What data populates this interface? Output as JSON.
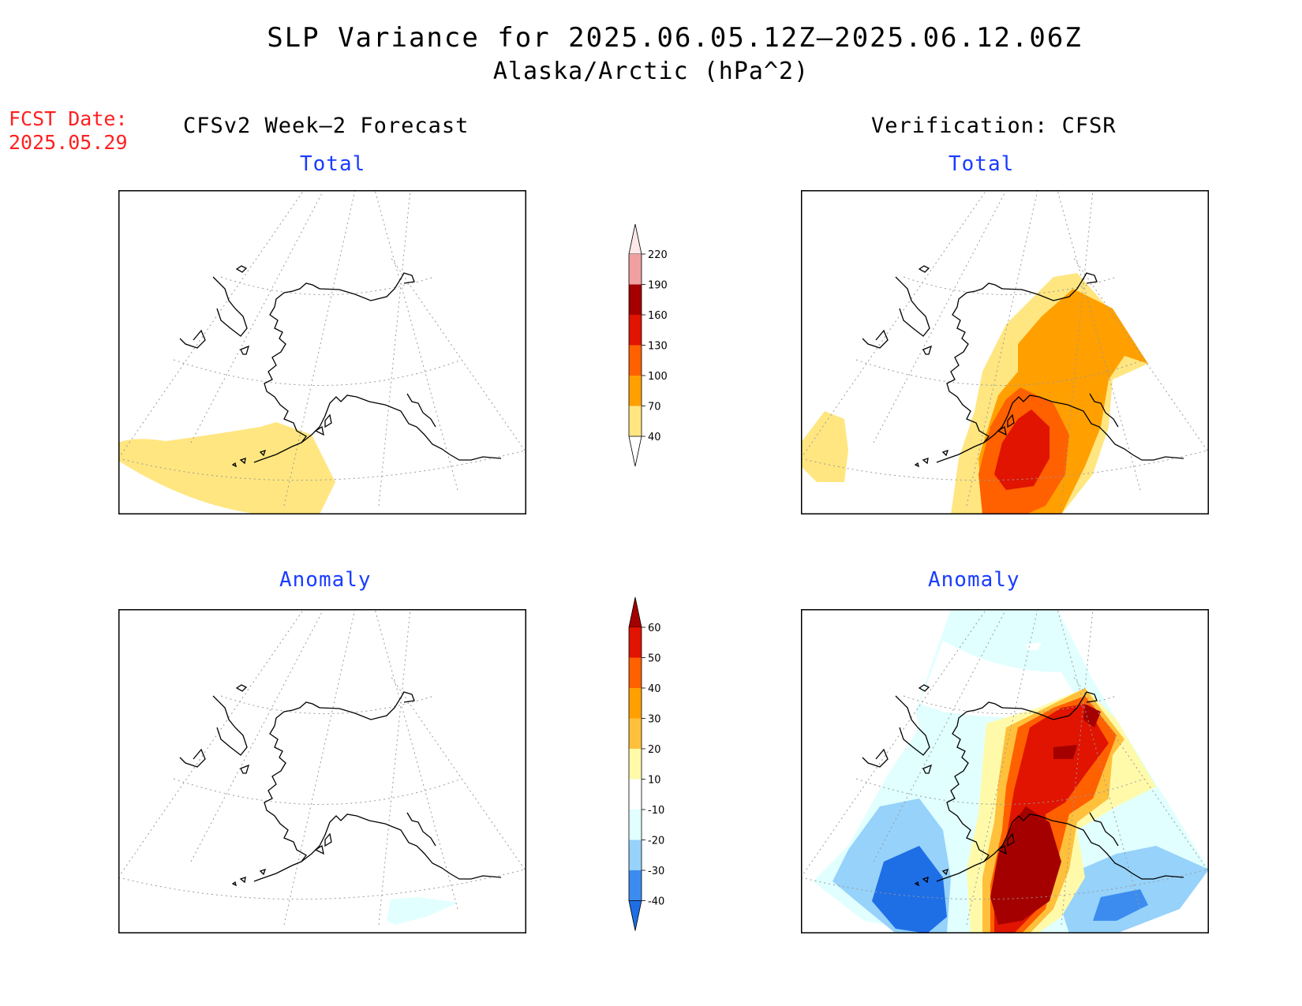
{
  "title": {
    "line1": "SLP Variance for 2025.06.05.12Z–2025.06.12.06Z",
    "line2": "Alaska/Arctic (hPa^2)"
  },
  "forecast_date": {
    "label": "FCST Date:",
    "value": "2025.05.29"
  },
  "columns": {
    "left": "CFSv2 Week–2 Forecast",
    "right": "Verification: CFSR"
  },
  "panels": [
    {
      "id": "forecast-total",
      "title": "Total"
    },
    {
      "id": "verification-total",
      "title": "Total"
    },
    {
      "id": "forecast-anomaly",
      "title": "Anomaly"
    },
    {
      "id": "verification-anomaly",
      "title": "Anomaly"
    }
  ],
  "colorbars": {
    "total": {
      "levels": [
        "40",
        "70",
        "100",
        "130",
        "160",
        "190",
        "220"
      ],
      "colors": [
        "#ffe680",
        "#ffa000",
        "#ff6000",
        "#e01400",
        "#a50000",
        "#f0a0a0",
        "#fde8e8"
      ]
    },
    "anomaly": {
      "levels": [
        "-40",
        "-30",
        "-20",
        "-10",
        "10",
        "20",
        "30",
        "40",
        "50",
        "60"
      ],
      "colors": [
        "#1e6ee6",
        "#3c8cf0",
        "#96d2fa",
        "#e1ffff",
        "#ffffff",
        "#fffaaa",
        "#ffc03c",
        "#ffa000",
        "#ff6000",
        "#e01400",
        "#a50000"
      ]
    }
  }
}
